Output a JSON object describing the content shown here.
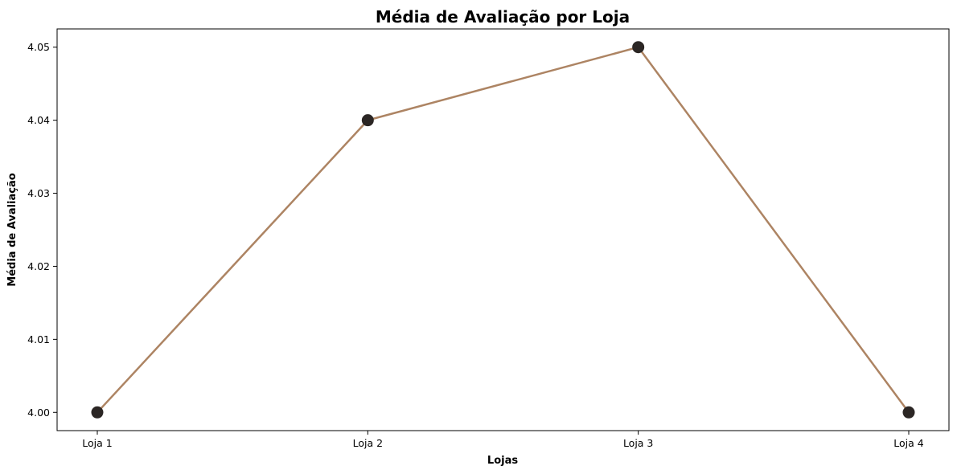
{
  "chart_data": {
    "type": "line",
    "title": "Média de Avaliação por Loja",
    "xlabel": "Lojas",
    "ylabel": "Média de Avaliação",
    "categories": [
      "Loja 1",
      "Loja 2",
      "Loja 3",
      "Loja 4"
    ],
    "series": [
      {
        "values": [
          4.0,
          4.04,
          4.05,
          4.0
        ]
      }
    ],
    "yticks": [
      "4.00",
      "4.01",
      "4.02",
      "4.03",
      "4.04",
      "4.05"
    ],
    "ylim": [
      3.9975,
      4.0525
    ],
    "grid": false,
    "legend": "none",
    "colors": {
      "line": "#ad8463",
      "marker": "#2b2624",
      "axes": "#000000"
    }
  }
}
